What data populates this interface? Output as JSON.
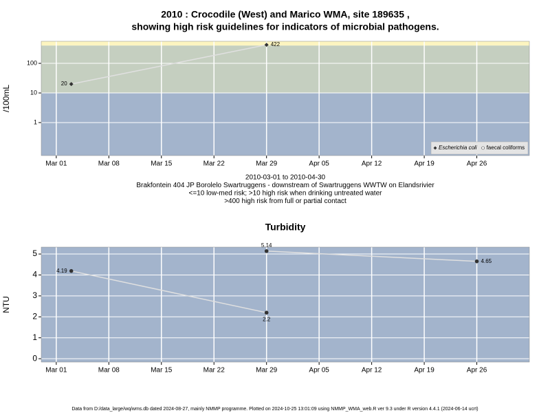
{
  "chart_data": [
    {
      "type": "line",
      "log_y": true,
      "title": [
        "2010 : Crocodile (West) and Marico WMA, site 189635 ,",
        "showing high risk guidelines for indicators of microbial pathogens."
      ],
      "ylabel": "/100mL",
      "annotations": [
        "2010-03-01 to 2010-04-30",
        "Brakfontein 404 JP Borolelo Swartruggens - downstream of Swartruggens WWTW on Elandsrivier",
        "<=10 low-med risk; >10 high risk when drinking untreated water",
        ">400 high risk from full or partial contact"
      ],
      "xlim": [
        "2010-02-27",
        "2010-05-03"
      ],
      "xticks": [
        {
          "value": "2010-03-01",
          "label": "Mar 01"
        },
        {
          "value": "2010-03-08",
          "label": "Mar 08"
        },
        {
          "value": "2010-03-15",
          "label": "Mar 15"
        },
        {
          "value": "2010-03-22",
          "label": "Mar 22"
        },
        {
          "value": "2010-03-29",
          "label": "Mar 29"
        },
        {
          "value": "2010-04-05",
          "label": "Apr 05"
        },
        {
          "value": "2010-04-12",
          "label": "Apr 12"
        },
        {
          "value": "2010-04-19",
          "label": "Apr 19"
        },
        {
          "value": "2010-04-26",
          "label": "Apr 26"
        }
      ],
      "ylim": [
        0.077,
        555
      ],
      "yticks": [
        1,
        10,
        100
      ],
      "thresholds": [
        10,
        400
      ],
      "band_colors": [
        "#a3b4cc",
        "#c5cfc0",
        "#fdf5c0"
      ],
      "grid": true,
      "legend": "lower right",
      "series": [
        {
          "name": "Escherichia coli",
          "marker": "diamond",
          "color": "#333333",
          "line_color": "#e0e0e0",
          "x": [
            "2010-03-03",
            "2010-03-29"
          ],
          "values": [
            20,
            422
          ]
        },
        {
          "name": "faecal coliforms",
          "marker": "circle",
          "color": "#ffffff",
          "line_color": "#e0e0e0",
          "x": [],
          "values": []
        }
      ]
    },
    {
      "type": "line",
      "log_y": false,
      "title": [
        "Turbidity"
      ],
      "ylabel": "NTU",
      "xlim": [
        "2010-02-27",
        "2010-05-03"
      ],
      "xticks": [
        {
          "value": "2010-03-01",
          "label": "Mar 01"
        },
        {
          "value": "2010-03-08",
          "label": "Mar 08"
        },
        {
          "value": "2010-03-15",
          "label": "Mar 15"
        },
        {
          "value": "2010-03-22",
          "label": "Mar 22"
        },
        {
          "value": "2010-03-29",
          "label": "Mar 29"
        },
        {
          "value": "2010-04-05",
          "label": "Apr 05"
        },
        {
          "value": "2010-04-12",
          "label": "Apr 12"
        },
        {
          "value": "2010-04-19",
          "label": "Apr 19"
        },
        {
          "value": "2010-04-26",
          "label": "Apr 26"
        }
      ],
      "ylim": [
        -0.16,
        5.33
      ],
      "yticks": [
        0,
        1,
        2,
        3,
        4,
        5
      ],
      "band_colors": [
        "#a3b4cc"
      ],
      "grid": true,
      "series": [
        {
          "name": "Turbidity",
          "marker": "circle",
          "color": "#333333",
          "line_color": "#e0e0e0",
          "x": [
            "2010-03-03",
            "2010-03-29",
            null,
            "2010-03-29",
            "2010-04-26"
          ],
          "values": [
            4.19,
            2.2,
            null,
            5.14,
            4.65
          ]
        }
      ]
    }
  ],
  "footer": "Data from D:/data_large/wq/wms.db dated 2024-08-27, mainly NMMP programme. Plotted on 2024-10-25 13:01:09 using NMMP_WMA_web.R ver 9.3 under R version 4.4.1 (2024-06-14 ucrt)"
}
